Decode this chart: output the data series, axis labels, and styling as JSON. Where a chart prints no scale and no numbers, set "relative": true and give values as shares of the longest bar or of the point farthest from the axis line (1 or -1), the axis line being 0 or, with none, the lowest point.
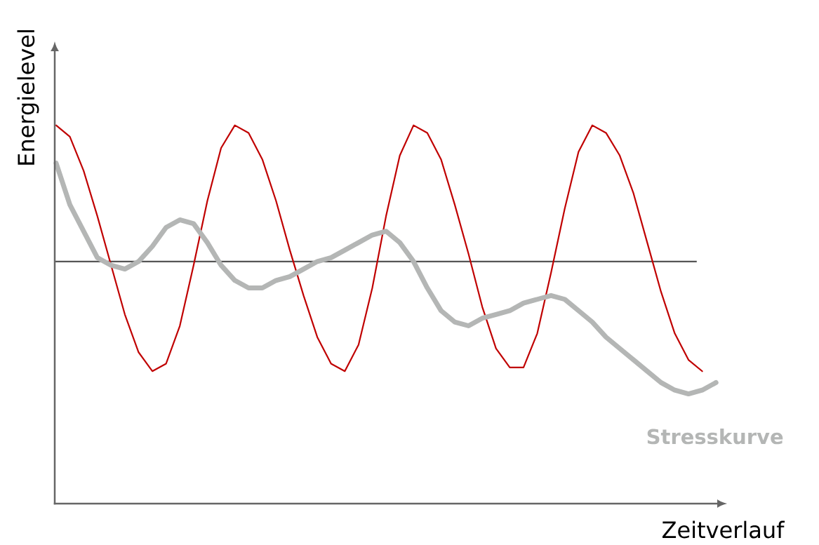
{
  "chart_data": {
    "type": "line",
    "relative": true,
    "xlabel": "Zeitverlauf",
    "ylabel": "Energielevel",
    "categories": [
      null,
      null,
      null,
      null,
      null,
      null,
      null,
      null,
      null,
      null,
      null,
      null,
      null,
      null,
      null,
      null,
      null,
      null,
      null,
      null,
      null,
      null,
      null,
      null,
      null,
      null,
      null,
      null,
      null,
      null,
      null,
      null,
      null,
      null,
      null,
      null,
      null,
      null,
      null,
      null,
      null,
      null,
      null,
      null,
      null,
      null,
      null,
      null,
      null
    ],
    "series": [
      {
        "color": "#c00000",
        "values": [
          1.0,
          0.97,
          0.88,
          0.76,
          0.63,
          0.5,
          0.4,
          0.35,
          0.37,
          0.47,
          0.63,
          0.8,
          0.94,
          1.0,
          0.98,
          0.91,
          0.8,
          0.67,
          0.55,
          0.44,
          0.37,
          0.35,
          0.42,
          0.57,
          0.76,
          0.92,
          1.0,
          0.98,
          0.91,
          0.79,
          0.66,
          0.52,
          0.41,
          0.36,
          0.36,
          0.45,
          0.61,
          0.78,
          0.93,
          1.0,
          0.98,
          0.92,
          0.82,
          0.69,
          0.56,
          0.45,
          0.38,
          0.35,
          null
        ]
      },
      {
        "name": "Stresskurve",
        "color": "#b4b6b5",
        "values": [
          0.9,
          0.79,
          0.72,
          0.65,
          0.63,
          0.62,
          0.64,
          0.68,
          0.73,
          0.75,
          0.74,
          0.69,
          0.63,
          0.59,
          0.57,
          0.57,
          0.59,
          0.6,
          0.62,
          0.64,
          0.65,
          0.67,
          0.69,
          0.71,
          0.72,
          0.69,
          0.64,
          0.57,
          0.51,
          0.48,
          0.47,
          0.49,
          0.5,
          0.51,
          0.53,
          0.54,
          0.55,
          0.54,
          0.51,
          0.48,
          0.44,
          0.41,
          0.38,
          0.35,
          0.32,
          0.3,
          0.29,
          0.3,
          0.32
        ]
      }
    ],
    "ref_lines": [
      {
        "axis": "y",
        "value": 0.64,
        "color": "#555555"
      }
    ]
  }
}
